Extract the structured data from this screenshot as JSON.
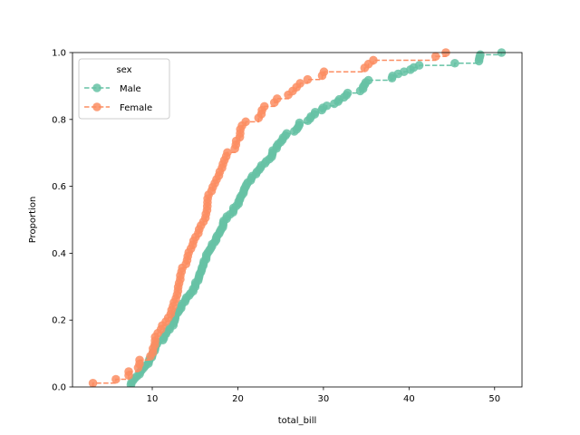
{
  "chart_data": {
    "type": "line",
    "subtype": "ecdf-step",
    "xlabel": "total_bill",
    "ylabel": "Proportion",
    "xlim": [
      0.68,
      53.2
    ],
    "ylim": [
      0,
      1
    ],
    "xticks": [
      10,
      20,
      30,
      40,
      50
    ],
    "yticks": [
      0.0,
      0.2,
      0.4,
      0.6,
      0.8,
      1.0
    ],
    "grid": false,
    "legend": {
      "title": "sex",
      "placement": "top-left"
    },
    "series": [
      {
        "name": "Male",
        "color": "#66c2a5",
        "values": [
          7.51,
          7.56,
          7.74,
          7.94,
          8.2,
          8.52,
          8.58,
          8.77,
          9.0,
          9.2,
          9.55,
          9.6,
          9.68,
          9.94,
          10.0,
          10.07,
          10.27,
          10.33,
          10.34,
          10.51,
          10.63,
          11.24,
          11.35,
          11.38,
          11.61,
          11.69,
          12.02,
          12.03,
          12.46,
          12.48,
          12.6,
          12.66,
          12.69,
          12.74,
          13.0,
          13.16,
          13.37,
          13.39,
          13.48,
          13.81,
          13.9,
          14.0,
          14.31,
          14.48,
          14.78,
          14.78,
          15.01,
          15.04,
          15.05,
          15.36,
          15.42,
          15.48,
          15.53,
          15.69,
          15.77,
          15.81,
          15.95,
          16.0,
          16.04,
          16.29,
          16.31,
          16.32,
          16.49,
          16.66,
          16.82,
          16.97,
          16.99,
          17.29,
          17.46,
          17.47,
          17.59,
          17.81,
          17.92,
          18.04,
          18.24,
          18.28,
          18.29,
          18.35,
          18.69,
          18.71,
          19.08,
          19.44,
          19.49,
          19.49,
          19.82,
          20.08,
          20.08,
          20.23,
          20.29,
          20.45,
          20.65,
          20.69,
          20.76,
          20.9,
          21.01,
          21.16,
          21.5,
          21.58,
          21.7,
          22.12,
          22.23,
          22.49,
          22.67,
          22.76,
          23.17,
          23.33,
          23.68,
          23.95,
          24.01,
          24.06,
          24.08,
          24.52,
          24.55,
          24.71,
          25.0,
          25.21,
          25.28,
          25.56,
          25.71,
          26.59,
          26.88,
          27.05,
          27.18,
          27.2,
          28.17,
          28.44,
          28.55,
          28.97,
          29.03,
          29.8,
          29.93,
          30.4,
          31.27,
          31.71,
          31.85,
          32.4,
          32.68,
          32.83,
          34.3,
          34.63,
          34.65,
          34.83,
          34.95,
          35.26,
          38.01,
          38.07,
          38.73,
          39.42,
          40.17,
          40.55,
          41.19,
          45.35,
          48.17,
          48.2,
          48.27,
          48.33,
          50.81
        ]
      },
      {
        "name": "Female",
        "color": "#fc8d62",
        "values": [
          3.07,
          5.75,
          7.25,
          7.25,
          8.35,
          8.51,
          8.52,
          9.78,
          10.07,
          10.09,
          10.29,
          10.33,
          10.34,
          10.65,
          11.02,
          11.17,
          11.59,
          11.87,
          12.16,
          12.26,
          12.43,
          12.54,
          12.76,
          12.9,
          13.0,
          13.03,
          13.13,
          13.27,
          13.28,
          13.42,
          13.51,
          13.94,
          14.07,
          14.15,
          14.26,
          14.52,
          14.73,
          14.83,
          15.06,
          15.38,
          15.48,
          15.69,
          15.98,
          16.21,
          16.27,
          16.4,
          16.43,
          16.45,
          16.47,
          16.58,
          16.93,
          17.07,
          17.31,
          17.51,
          17.78,
          17.89,
          18.15,
          18.26,
          18.43,
          18.64,
          18.78,
          19.65,
          19.77,
          19.81,
          20.23,
          20.27,
          20.29,
          20.49,
          20.92,
          22.42,
          22.75,
          22.82,
          23.1,
          24.27,
          24.59,
          25.89,
          26.41,
          26.86,
          27.28,
          28.15,
          29.85,
          30.06,
          34.81,
          35.26,
          35.83,
          43.11,
          44.3
        ]
      }
    ]
  }
}
